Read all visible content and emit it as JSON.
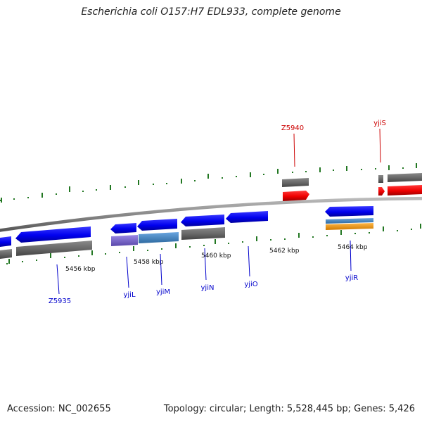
{
  "title": "Escherichia coli O157:H7 EDL933, complete genome",
  "footer": {
    "accession": "Accession: NC_002655",
    "stats": "Topology: circular; Length: 5,528,445 bp; Genes: 5,426"
  },
  "colors": {
    "forward_gene": "#ee0000",
    "reverse_gene": "#0000ee",
    "hypothetical": "#666666",
    "cog_purple": "#7a66cc",
    "cog_steel": "#4a86c0",
    "cog_orange": "#f39a1e",
    "tick_mark": "#227722",
    "backbone": "#888888",
    "forward_label": "#cc0000",
    "reverse_label": "#0000cc"
  },
  "scale": {
    "tick_labels": [
      "5456 kbp",
      "5458 kbp",
      "5460 kbp",
      "5462 kbp",
      "5464 kbp"
    ]
  },
  "genes": [
    {
      "name": "Z5940",
      "strand": "forward"
    },
    {
      "name": "yjiS",
      "strand": "forward"
    },
    {
      "name": "Z5935",
      "strand": "reverse"
    },
    {
      "name": "yjiL",
      "strand": "reverse"
    },
    {
      "name": "yjiM",
      "strand": "reverse"
    },
    {
      "name": "yjiN",
      "strand": "reverse"
    },
    {
      "name": "yjiO",
      "strand": "reverse"
    },
    {
      "name": "yjiR",
      "strand": "reverse"
    }
  ]
}
